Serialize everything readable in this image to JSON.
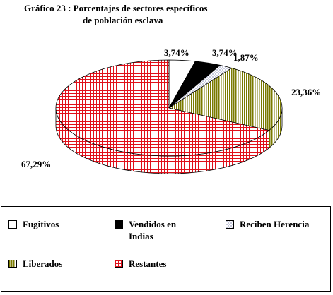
{
  "title_line1": "Gráfico 23 : Porcentajes de sectores específicos",
  "title_line2": "de población esclava",
  "colors": {
    "fugitivos": "#ffffff",
    "vendidos": "#000000",
    "herencia": "#1e2a78",
    "liberados": "#7a7a00",
    "restantes": "#e0101a"
  },
  "chart_data": {
    "type": "pie",
    "slices": [
      {
        "label": "Fugitivos",
        "value": 3.74,
        "value_label": "3,74%"
      },
      {
        "label": "Vendidos en Indias",
        "value": 3.74,
        "value_label": "3,74%"
      },
      {
        "label": "Reciben Herencia",
        "value": 1.87,
        "value_label": "1,87%"
      },
      {
        "label": "Liberados",
        "value": 23.36,
        "value_label": "23,36%"
      },
      {
        "label": "Restantes",
        "value": 67.29,
        "value_label": "67,29%"
      }
    ],
    "style": "3d-pie",
    "legend_position": "bottom"
  },
  "legend": {
    "items": [
      {
        "label": "Fugitivos"
      },
      {
        "label": "Vendidos en Indias"
      },
      {
        "label": "Reciben Herencia"
      },
      {
        "label": "Liberados"
      },
      {
        "label": "Restantes"
      }
    ]
  }
}
